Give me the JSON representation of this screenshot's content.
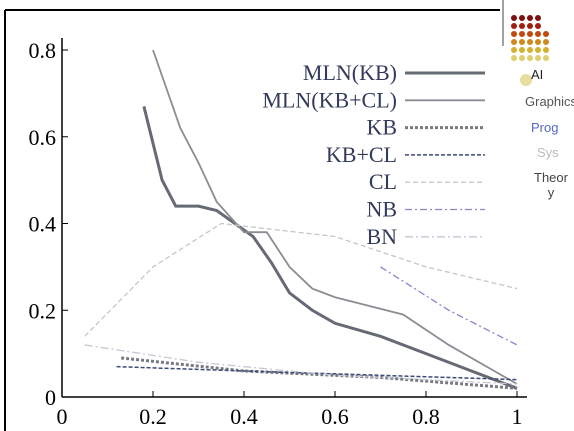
{
  "chart_data": {
    "type": "line",
    "xlim": [
      0,
      1
    ],
    "xticks": [
      0,
      0.2,
      0.4,
      0.6,
      0.8,
      1
    ],
    "ylim": [
      0,
      0.8
    ],
    "yticks": [
      0,
      0.2,
      0.4,
      0.6,
      0.8
    ],
    "legend": "top-right",
    "series": [
      {
        "name": "MLN(KB)",
        "color": "#666a74",
        "width": 3,
        "dash": "none",
        "x": [
          0.18,
          0.22,
          0.25,
          0.3,
          0.34,
          0.38,
          0.42,
          0.46,
          0.5,
          0.55,
          0.6,
          0.7,
          0.8,
          0.9,
          1
        ],
        "values": [
          0.67,
          0.5,
          0.44,
          0.44,
          0.43,
          0.4,
          0.37,
          0.31,
          0.24,
          0.2,
          0.17,
          0.14,
          0.1,
          0.06,
          0.02
        ]
      },
      {
        "name": "MLN(KB+CL)",
        "color": "#8a8d94",
        "width": 1.8,
        "dash": "none",
        "x": [
          0.2,
          0.26,
          0.3,
          0.34,
          0.4,
          0.45,
          0.5,
          0.55,
          0.6,
          0.75,
          0.85,
          0.95,
          1
        ],
        "values": [
          0.8,
          0.62,
          0.54,
          0.45,
          0.38,
          0.38,
          0.3,
          0.25,
          0.23,
          0.19,
          0.12,
          0.06,
          0.03
        ]
      },
      {
        "name": "KB",
        "color": "#777a80",
        "width": 3,
        "dash": "3,2",
        "x": [
          0.13,
          0.4,
          0.7,
          1
        ],
        "values": [
          0.09,
          0.06,
          0.045,
          0.02
        ]
      },
      {
        "name": "KB+CL",
        "color": "#3d4a78",
        "width": 1.5,
        "dash": "4,2",
        "x": [
          0.12,
          0.4,
          0.7,
          1
        ],
        "values": [
          0.07,
          0.06,
          0.05,
          0.04
        ]
      },
      {
        "name": "CL",
        "color": "#c4c6cc",
        "width": 1.3,
        "dash": "5,3",
        "x": [
          0.05,
          0.2,
          0.35,
          0.6,
          0.8,
          1
        ],
        "values": [
          0.14,
          0.3,
          0.4,
          0.37,
          0.3,
          0.25
        ]
      },
      {
        "name": "NB",
        "color": "#8c86c8",
        "width": 1.3,
        "dash": "7,3,2,3",
        "x": [
          0.7,
          0.85,
          1
        ],
        "values": [
          0.3,
          0.2,
          0.12
        ]
      },
      {
        "name": "BN",
        "color": "#c6c8d6",
        "width": 1.3,
        "dash": "8,3,2,3",
        "x": [
          0.05,
          0.3,
          0.6,
          1
        ],
        "values": [
          0.12,
          0.08,
          0.05,
          0.03
        ]
      }
    ]
  },
  "sidebar": {
    "items": [
      "AI",
      "Graphics",
      "Prog",
      "Sys",
      "Theory"
    ]
  }
}
